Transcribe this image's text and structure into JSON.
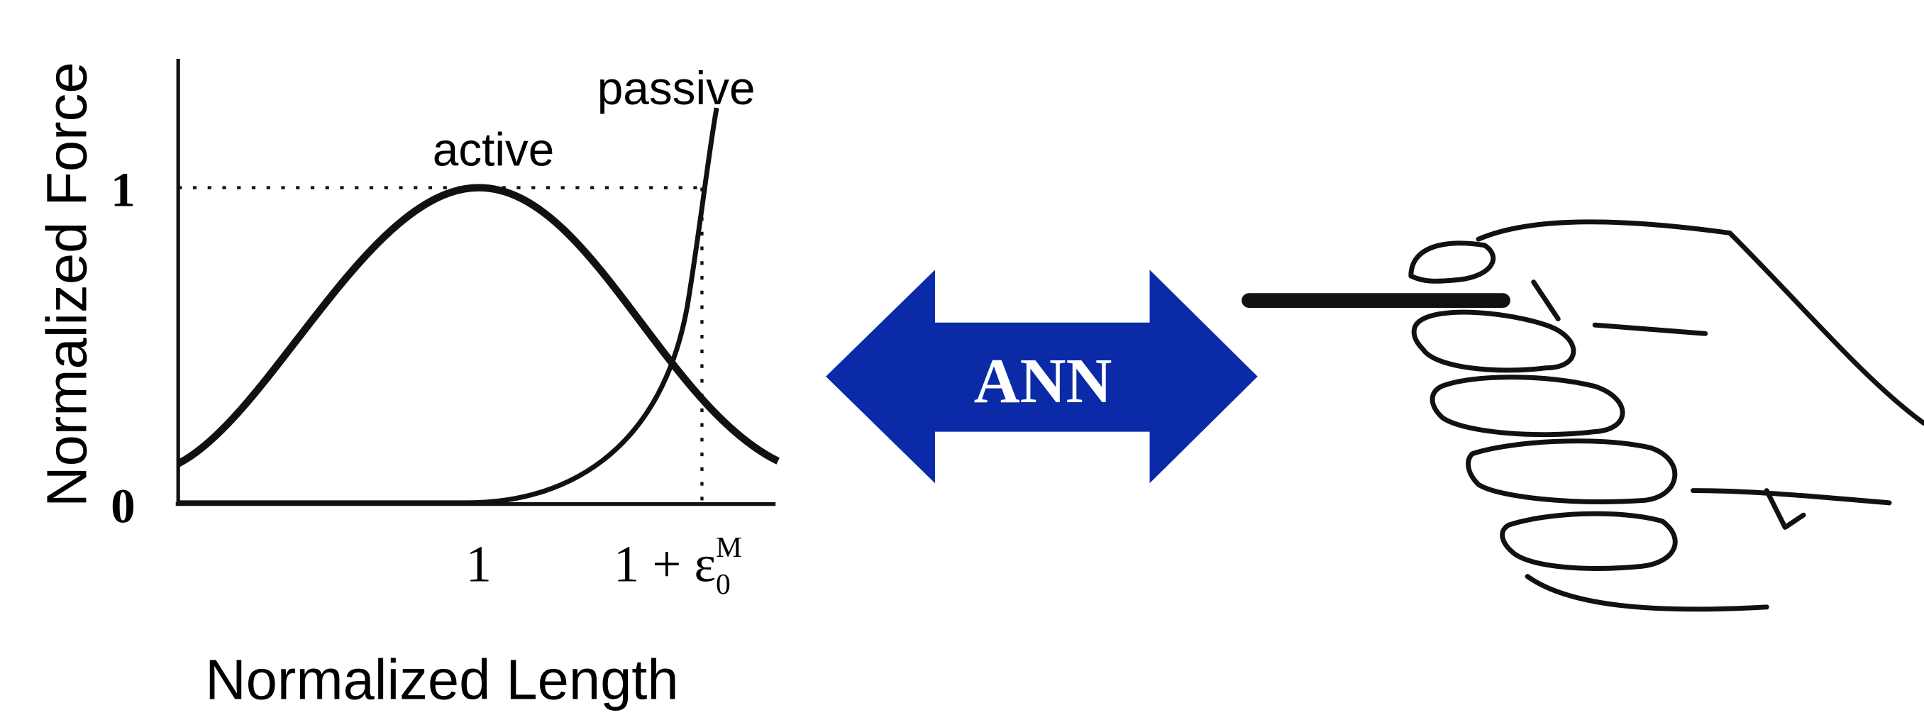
{
  "chart": {
    "y_label": "Normalized Force",
    "x_label": "Normalized Length",
    "curve_labels": [
      "active",
      "passive"
    ],
    "yticks": [
      "0",
      "1"
    ],
    "xticks": [
      {
        "base": "1"
      },
      {
        "base": "1 + ε",
        "sub": "0",
        "sup": "M"
      }
    ]
  },
  "arrow": {
    "label": "ANN"
  }
}
